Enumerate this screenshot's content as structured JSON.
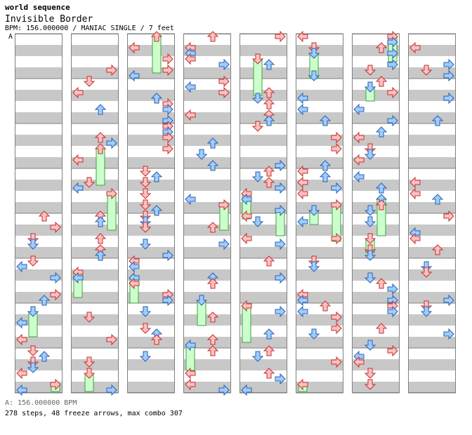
{
  "header": {
    "artist": "world sequence",
    "song": "Invisible Border",
    "meta": "BPM: 156.000000 / MANIAC SINGLE / 7 feet",
    "bpm_marker": "A"
  },
  "footer": {
    "bpm_line": "A: 156.000000 BPM",
    "stats_line": "278 steps, 48 freeze arrows, max combo 307"
  },
  "chart_data": {
    "type": "step-chart",
    "columns": 8,
    "measures_per_column": 8,
    "lanes": [
      "left",
      "down",
      "up",
      "right"
    ],
    "colors": {
      "stripe": "#c8c8c8",
      "frame": "#808080",
      "red_arrow": "#ffc0c0",
      "red_stroke": "#c03030",
      "blue_arrow": "#a0ccff",
      "blue_stroke": "#2860b0",
      "freeze_fill": "#ccffcc",
      "freeze_stroke": "#40a040"
    }
  }
}
